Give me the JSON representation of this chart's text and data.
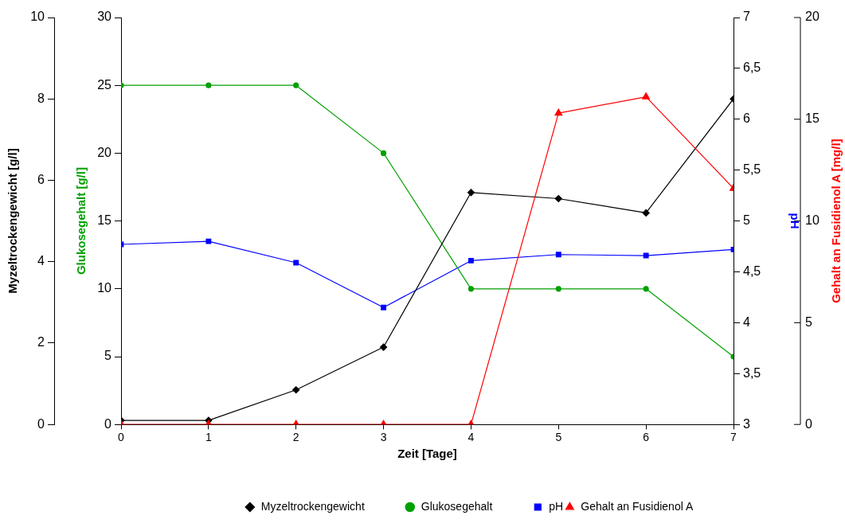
{
  "chart_data": [
    {
      "type": "line",
      "xlabel": "Zeit [Tage]",
      "ylabel": "Myzeltrockengewicht [g/l]",
      "y2label": "Glukosegehalt [g/l]",
      "y3label": "pH",
      "x": [
        0,
        1,
        2,
        3,
        4,
        5,
        6,
        7
      ],
      "xlim": [
        0,
        7
      ],
      "xticks": [
        0,
        1,
        2,
        3,
        4,
        5,
        6,
        7
      ],
      "ylim": [
        0,
        10
      ],
      "yticks": [
        0,
        2,
        4,
        6,
        8,
        10
      ],
      "y2lim": [
        0,
        30
      ],
      "y2ticks": [
        0,
        5,
        10,
        15,
        20,
        25,
        30
      ],
      "y3lim": [
        3,
        7
      ],
      "y3ticks": [
        3,
        {
          "value": 3.5,
          "label": "3,5"
        },
        4,
        {
          "value": 4.5,
          "label": "4,5"
        },
        5,
        {
          "value": 5.5,
          "label": "5,5"
        },
        6,
        {
          "value": 6.5,
          "label": "6,5"
        },
        7
      ],
      "grid": false,
      "legend": "bottom",
      "line_style": "solid",
      "series": [
        {
          "name": "Myzeltrockengewicht",
          "color": "#000000",
          "marker": "diamond",
          "values": [
            0.1,
            0.1,
            0.85,
            1.9,
            5.7,
            5.55,
            5.2,
            8.0
          ]
        },
        {
          "name": "Glukosegehalt",
          "color": "#00a000",
          "marker": "circle",
          "axis": "y2",
          "values": [
            25,
            25,
            25,
            20,
            10,
            10,
            10,
            5
          ]
        },
        {
          "name": "pH",
          "color": "#0000ff",
          "marker": "square",
          "axis": "y3",
          "values": [
            4.77,
            4.8,
            4.59,
            4.15,
            4.61,
            4.67,
            4.66,
            4.72
          ]
        }
      ]
    },
    {
      "type": "line",
      "ylabel": "Gehalt an Fusidienol A [mg/l]",
      "x": [
        0,
        1,
        2,
        3,
        4,
        5,
        6,
        7
      ],
      "xlim": [
        0,
        7
      ],
      "xticks": [
        0,
        1,
        2,
        3,
        4,
        5,
        6,
        7
      ],
      "ylim": [
        0,
        20
      ],
      "yticks": [
        0,
        5,
        10,
        15,
        20
      ],
      "tick_labels": "y",
      "legend": "bottom right",
      "line_style": "solid",
      "series": [
        {
          "name": "Gehalt an Fusidienol A",
          "color": "#ff0000",
          "marker": "triangle",
          "values": [
            0,
            0,
            0,
            0,
            0,
            15.3,
            16.1,
            11.6
          ]
        }
      ]
    }
  ]
}
